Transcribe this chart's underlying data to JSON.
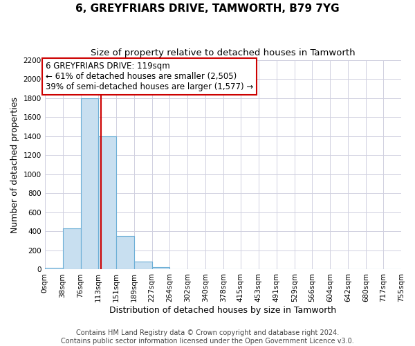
{
  "title": "6, GREYFRIARS DRIVE, TAMWORTH, B79 7YG",
  "subtitle": "Size of property relative to detached houses in Tamworth",
  "xlabel": "Distribution of detached houses by size in Tamworth",
  "ylabel": "Number of detached properties",
  "bar_edges": [
    0,
    38,
    76,
    113,
    151,
    189,
    227,
    264,
    302,
    340,
    378,
    415,
    453,
    491,
    529,
    566,
    604,
    642,
    680,
    717,
    755
  ],
  "bar_heights": [
    18,
    430,
    1800,
    1400,
    350,
    80,
    25,
    0,
    0,
    0,
    0,
    0,
    0,
    0,
    0,
    0,
    0,
    0,
    0,
    0
  ],
  "bar_color": "#c8dff0",
  "bar_edge_color": "#6baed6",
  "property_size": 119,
  "vline_color": "#cc0000",
  "annotation_line1": "6 GREYFRIARS DRIVE: 119sqm",
  "annotation_line2": "← 61% of detached houses are smaller (2,505)",
  "annotation_line3": "39% of semi-detached houses are larger (1,577) →",
  "annotation_box_color": "#ffffff",
  "annotation_box_edge_color": "#cc0000",
  "ylim": [
    0,
    2200
  ],
  "yticks": [
    0,
    200,
    400,
    600,
    800,
    1000,
    1200,
    1400,
    1600,
    1800,
    2000,
    2200
  ],
  "tick_labels": [
    "0sqm",
    "38sqm",
    "76sqm",
    "113sqm",
    "151sqm",
    "189sqm",
    "227sqm",
    "264sqm",
    "302sqm",
    "340sqm",
    "378sqm",
    "415sqm",
    "453sqm",
    "491sqm",
    "529sqm",
    "566sqm",
    "604sqm",
    "642sqm",
    "680sqm",
    "717sqm",
    "755sqm"
  ],
  "footer_line1": "Contains HM Land Registry data © Crown copyright and database right 2024.",
  "footer_line2": "Contains public sector information licensed under the Open Government Licence v3.0.",
  "bg_color": "#ffffff",
  "grid_color": "#d0d0e0",
  "title_fontsize": 11,
  "subtitle_fontsize": 9.5,
  "axis_label_fontsize": 9,
  "tick_fontsize": 7.5,
  "annotation_fontsize": 8.5,
  "footer_fontsize": 7
}
